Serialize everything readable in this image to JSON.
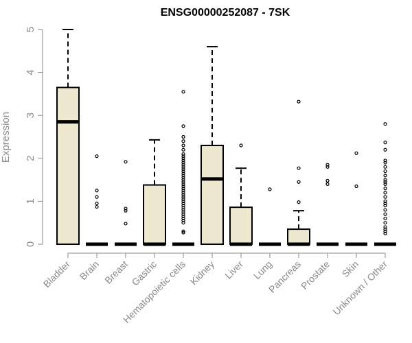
{
  "chart_data": {
    "type": "boxplot",
    "title": "ENSG00000252087 - 7SK",
    "xlabel": "",
    "ylabel": "Expression",
    "ylim": [
      0,
      5
    ],
    "yticks": [
      0,
      1,
      2,
      3,
      4,
      5
    ],
    "grid": false,
    "legend": "none",
    "box_fill": "#ede8cf",
    "categories": [
      "Bladder",
      "Brain",
      "Breast",
      "Gastric",
      "Hematopoietic cells",
      "Kidney",
      "Liver",
      "Lung",
      "Pancreas",
      "Prostate",
      "Skin",
      "Unknown / Other"
    ],
    "boxes": [
      {
        "q1": 0,
        "median": 2.85,
        "q3": 3.65,
        "whisker_low": 0,
        "whisker_high": 5.0,
        "outliers": []
      },
      {
        "q1": 0,
        "median": 0,
        "q3": 0,
        "whisker_low": 0,
        "whisker_high": 0,
        "outliers": [
          2.05,
          1.25,
          1.1,
          0.95,
          0.87
        ]
      },
      {
        "q1": 0,
        "median": 0,
        "q3": 0,
        "whisker_low": 0,
        "whisker_high": 0,
        "outliers": [
          1.92,
          0.83,
          0.78,
          0.48
        ]
      },
      {
        "q1": 0,
        "median": 0,
        "q3": 1.38,
        "whisker_low": 0,
        "whisker_high": 2.43,
        "outliers": []
      },
      {
        "q1": 0,
        "median": 0,
        "q3": 0,
        "whisker_low": 0,
        "whisker_high": 0,
        "outliers": [
          3.55,
          2.75,
          2.5,
          2.4,
          2.3,
          2.2,
          2.1,
          2.05,
          2.0,
          1.95,
          1.9,
          1.85,
          1.8,
          1.75,
          1.7,
          1.65,
          1.6,
          1.55,
          1.5,
          1.45,
          1.4,
          1.35,
          1.3,
          1.25,
          1.2,
          1.15,
          1.1,
          1.05,
          1.0,
          0.95,
          0.9,
          0.85,
          0.8,
          0.75,
          0.7,
          0.65,
          0.6,
          0.55,
          0.5,
          0.3,
          0.27
        ]
      },
      {
        "q1": 0,
        "median": 1.52,
        "q3": 2.3,
        "whisker_low": 0,
        "whisker_high": 4.6,
        "outliers": []
      },
      {
        "q1": 0,
        "median": 0,
        "q3": 0.86,
        "whisker_low": 0,
        "whisker_high": 1.77,
        "outliers": [
          2.3
        ]
      },
      {
        "q1": 0,
        "median": 0,
        "q3": 0,
        "whisker_low": 0,
        "whisker_high": 0,
        "outliers": [
          1.28
        ]
      },
      {
        "q1": 0,
        "median": 0,
        "q3": 0.35,
        "whisker_low": 0,
        "whisker_high": 0.78,
        "outliers": [
          3.32,
          1.77,
          1.45,
          0.98
        ]
      },
      {
        "q1": 0,
        "median": 0,
        "q3": 0,
        "whisker_low": 0,
        "whisker_high": 0,
        "outliers": [
          1.85,
          1.8,
          1.48,
          1.4
        ]
      },
      {
        "q1": 0,
        "median": 0,
        "q3": 0,
        "whisker_low": 0,
        "whisker_high": 0,
        "outliers": [
          2.12,
          1.35
        ]
      },
      {
        "q1": 0,
        "median": 0,
        "q3": 0,
        "whisker_low": 0,
        "whisker_high": 0,
        "outliers": [
          2.8,
          2.37,
          2.2,
          1.95,
          1.9,
          1.8,
          1.7,
          1.6,
          1.5,
          1.45,
          1.4,
          1.3,
          1.2,
          1.1,
          1.0,
          0.95,
          0.9,
          0.8,
          0.7,
          0.6,
          0.5,
          0.4,
          0.35,
          0.3,
          0.25
        ]
      }
    ]
  }
}
